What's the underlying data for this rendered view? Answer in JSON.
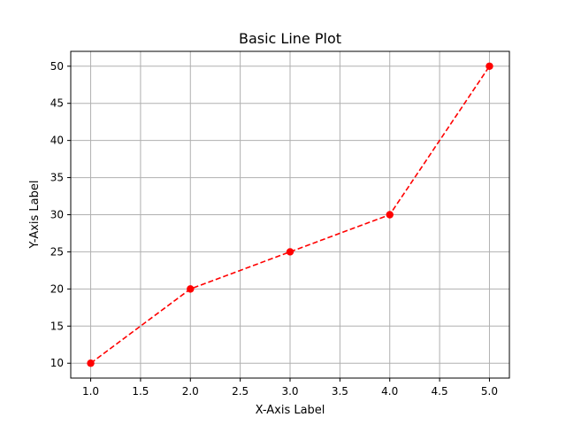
{
  "chart_data": {
    "type": "line",
    "title": "Basic Line Plot",
    "xlabel": "X-Axis Label",
    "ylabel": "Y-Axis Label",
    "x": [
      1,
      2,
      3,
      4,
      5
    ],
    "series": [
      {
        "values": [
          10,
          20,
          25,
          30,
          50
        ],
        "color": "#ff0000",
        "line_style": "dashed",
        "marker": "circle"
      }
    ],
    "xlim": [
      0.8,
      5.2
    ],
    "ylim": [
      8,
      52
    ],
    "xticks": [
      1.0,
      1.5,
      2.0,
      2.5,
      3.0,
      3.5,
      4.0,
      4.5,
      5.0
    ],
    "xtick_labels": [
      "1.0",
      "1.5",
      "2.0",
      "2.5",
      "3.0",
      "3.5",
      "4.0",
      "4.5",
      "5.0"
    ],
    "yticks": [
      10,
      15,
      20,
      25,
      30,
      35,
      40,
      45,
      50
    ],
    "ytick_labels": [
      "10",
      "15",
      "20",
      "25",
      "30",
      "35",
      "40",
      "45",
      "50"
    ],
    "grid": true,
    "grid_color": "#b0b0b0"
  }
}
